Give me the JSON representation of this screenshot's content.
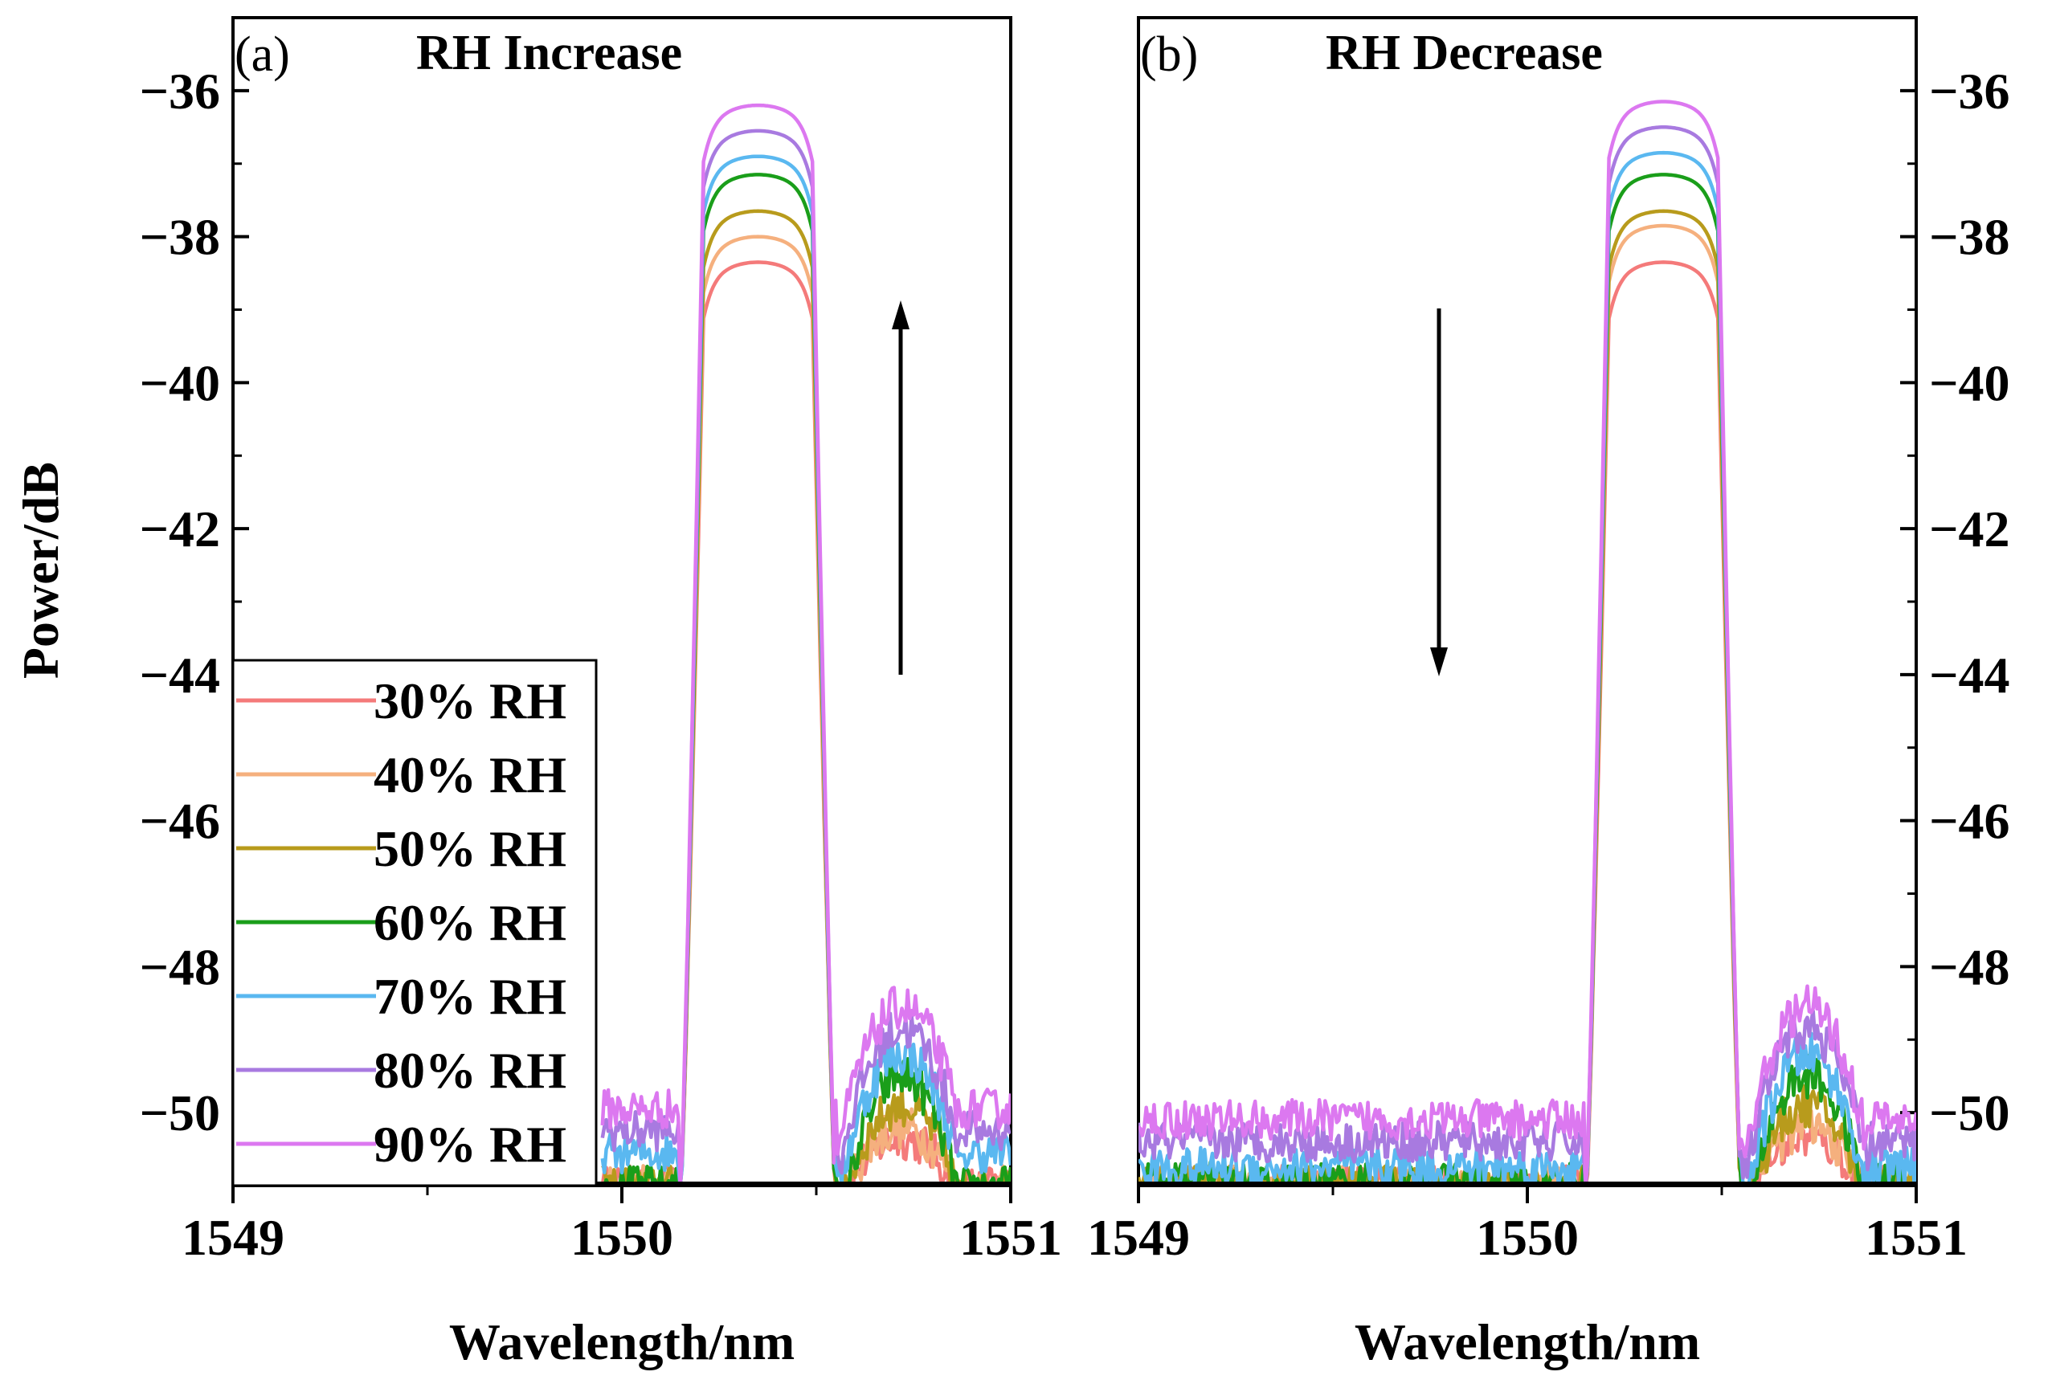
{
  "figure": {
    "ylabel": "Power/dB",
    "xlabel": "Wavelength/nm"
  },
  "chart_data": [
    {
      "type": "line",
      "panel": "(a)",
      "title": "RH Increase",
      "xlabel": "Wavelength/nm",
      "ylabel": "Power/dB",
      "xlim": [
        1549,
        1551
      ],
      "ylim": [
        -51,
        -35
      ],
      "xticks": [
        1549,
        1550,
        1551
      ],
      "xtick_labels": [
        "1549",
        "1550",
        "1551"
      ],
      "yticks": [
        -36,
        -38,
        -40,
        -42,
        -44,
        -46,
        -48,
        -50
      ],
      "ytick_labels": [
        "−36",
        "−38",
        "−40",
        "−42",
        "−44",
        "−46",
        "−48",
        "−50"
      ],
      "y_axis_side": "left",
      "arrow": "up",
      "x_range_plotted": [
        1549.95,
        1551.0
      ],
      "series": [
        {
          "name": "30% RH",
          "color": "#f47a7a",
          "peak": -38.35,
          "side_peak": -50.35,
          "floor": -51.0
        },
        {
          "name": "40% RH",
          "color": "#f5b07e",
          "peak": -38.0,
          "side_peak": -50.2,
          "floor": -51.0
        },
        {
          "name": "50% RH",
          "color": "#b89b1c",
          "peak": -37.65,
          "side_peak": -49.9,
          "floor": -51.0
        },
        {
          "name": "60% RH",
          "color": "#1a9e1a",
          "peak": -37.15,
          "side_peak": -49.5,
          "floor": -51.0
        },
        {
          "name": "70% RH",
          "color": "#5ab8f0",
          "peak": -36.9,
          "side_peak": -49.2,
          "floor": -50.55
        },
        {
          "name": "80% RH",
          "color": "#a87ae0",
          "peak": -36.55,
          "side_peak": -48.85,
          "floor": -50.25
        },
        {
          "name": "90% RH",
          "color": "#dc78f0",
          "peak": -36.2,
          "side_peak": -48.55,
          "floor": -49.95
        }
      ]
    },
    {
      "type": "line",
      "panel": "(b)",
      "title": "RH Decrease",
      "xlabel": "Wavelength/nm",
      "ylabel": "Power/dB",
      "xlim": [
        1549,
        1551
      ],
      "ylim": [
        -51,
        -35
      ],
      "xticks": [
        1549,
        1550,
        1551
      ],
      "xtick_labels": [
        "1549",
        "1550",
        "1551"
      ],
      "yticks": [
        -36,
        -38,
        -40,
        -42,
        -44,
        -46,
        -48,
        -50
      ],
      "ytick_labels": [
        "−36",
        "−38",
        "−40",
        "−42",
        "−44",
        "−46",
        "−48",
        "−50"
      ],
      "y_axis_side": "right",
      "arrow": "down",
      "x_range_plotted": [
        1549.0,
        1551.0
      ],
      "series": [
        {
          "name": "30% RH",
          "color": "#f47a7a",
          "peak": -38.35,
          "side_peak": -50.35,
          "floor": -51.0
        },
        {
          "name": "40% RH",
          "color": "#f5b07e",
          "peak": -37.85,
          "side_peak": -50.2,
          "floor": -51.0
        },
        {
          "name": "50% RH",
          "color": "#b89b1c",
          "peak": -37.65,
          "side_peak": -49.9,
          "floor": -51.0
        },
        {
          "name": "60% RH",
          "color": "#1a9e1a",
          "peak": -37.15,
          "side_peak": -49.5,
          "floor": -50.95
        },
        {
          "name": "70% RH",
          "color": "#5ab8f0",
          "peak": -36.85,
          "side_peak": -49.2,
          "floor": -50.75
        },
        {
          "name": "80% RH",
          "color": "#a87ae0",
          "peak": -36.5,
          "side_peak": -48.85,
          "floor": -50.4
        },
        {
          "name": "90% RH",
          "color": "#dc78f0",
          "peak": -36.15,
          "side_peak": -48.55,
          "floor": -50.1
        }
      ]
    }
  ]
}
